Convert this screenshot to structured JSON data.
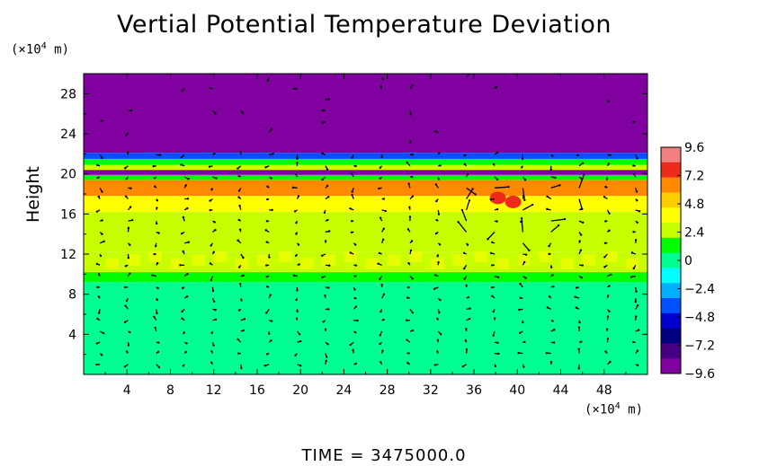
{
  "chart_data": {
    "type": "heatmap",
    "title": "Vertial Potential Temperature Deviation",
    "xlabel": "",
    "ylabel": "Height",
    "x_unit": "(×10⁴ m)",
    "y_unit": "(×10⁴ m)",
    "x_unit_base": "(×10",
    "x_unit_exp": "4",
    "x_unit_tail": " m)",
    "xlim": [
      0,
      52
    ],
    "ylim": [
      0,
      30
    ],
    "x_ticks": [
      4,
      8,
      12,
      16,
      20,
      24,
      28,
      32,
      36,
      40,
      44,
      48
    ],
    "x_tick_labels": [
      "4",
      "8",
      "12",
      "16",
      "20",
      "24",
      "28",
      "32",
      "36",
      "40",
      "44",
      "48"
    ],
    "y_ticks": [
      4,
      8,
      12,
      16,
      20,
      24,
      28
    ],
    "y_tick_labels": [
      "4",
      "8",
      "12",
      "16",
      "20",
      "24",
      "28"
    ],
    "colorbar": {
      "range": [
        -9.6,
        9.6
      ],
      "tick_values": [
        9.6,
        7.2,
        4.8,
        2.4,
        0,
        -2.4,
        -4.8,
        -7.2,
        -9.6
      ],
      "tick_labels": [
        "9.6",
        "7.2",
        "4.8",
        "2.4",
        "0",
        "−2.4",
        "−4.8",
        "−7.2",
        "−9.6"
      ],
      "colors": [
        "#f08080",
        "#ee2a1a",
        "#ff8a00",
        "#ffcc00",
        "#ffff00",
        "#c8ff00",
        "#00ff00",
        "#00ff90",
        "#00ffff",
        "#00b0ff",
        "#0050ff",
        "#0000cc",
        "#000080",
        "#440080",
        "#8000a0"
      ]
    },
    "layers": [
      {
        "y_from": 0,
        "y_to": 9.2,
        "value": 0.2
      },
      {
        "y_from": 9.2,
        "y_to": 10.2,
        "value": 1.6
      },
      {
        "y_from": 10.2,
        "y_to": 12.2,
        "value": 3.2
      },
      {
        "y_from": 12.2,
        "y_to": 16.2,
        "value": 2.0
      },
      {
        "y_from": 16.2,
        "y_to": 17.8,
        "value": 4.0
      },
      {
        "y_from": 17.8,
        "y_to": 19.4,
        "value": 5.8
      },
      {
        "y_from": 19.4,
        "y_to": 19.9,
        "value": 0.8
      },
      {
        "y_from": 19.9,
        "y_to": 20.4,
        "value": -8.4
      },
      {
        "y_from": 20.4,
        "y_to": 20.9,
        "value": 2.8
      },
      {
        "y_from": 20.9,
        "y_to": 21.5,
        "value": 1.0
      },
      {
        "y_from": 21.5,
        "y_to": 22.1,
        "value": -3.6
      },
      {
        "y_from": 22.1,
        "y_to": 30,
        "value": -9.6
      }
    ],
    "hotspots": [
      {
        "x": 38.2,
        "y": 17.6,
        "value": 7.8
      },
      {
        "x": 39.6,
        "y": 17.2,
        "value": 7.2
      }
    ],
    "annotation": "TIME  =  3475000.0"
  }
}
